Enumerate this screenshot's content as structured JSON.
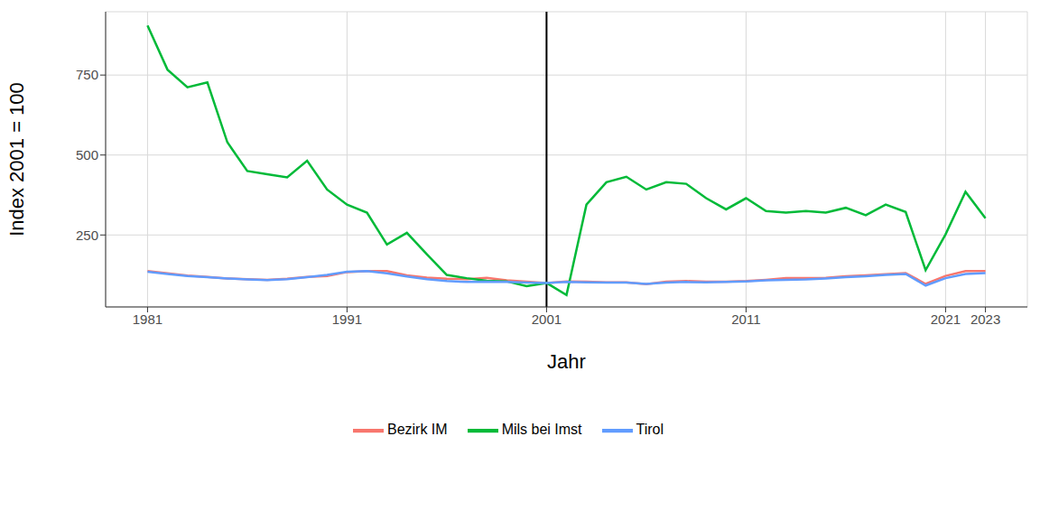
{
  "chart_data": {
    "type": "line",
    "x_label": "Jahr",
    "y_label": "Index 2001 = 100",
    "x": [
      1981,
      1982,
      1983,
      1984,
      1985,
      1986,
      1987,
      1988,
      1989,
      1990,
      1991,
      1992,
      1993,
      1994,
      1995,
      1996,
      1997,
      1998,
      1999,
      2000,
      2001,
      2002,
      2003,
      2004,
      2005,
      2006,
      2007,
      2008,
      2009,
      2010,
      2011,
      2012,
      2013,
      2014,
      2015,
      2016,
      2017,
      2018,
      2019,
      2020,
      2021,
      2022,
      2023
    ],
    "series": [
      {
        "name": "Bezirk IM",
        "color": "#F8766D",
        "values": [
          137,
          130,
          123,
          119,
          114,
          112,
          110,
          113,
          119,
          122,
          134,
          137,
          137,
          124,
          117,
          113,
          112,
          116,
          108,
          104,
          100,
          105,
          104,
          102,
          102,
          96,
          104,
          106,
          104,
          104,
          106,
          110,
          115,
          115,
          116,
          121,
          124,
          127,
          131,
          97,
          122,
          137,
          137
        ]
      },
      {
        "name": "Mils bei Imst",
        "color": "#00BA38",
        "values": [
          905,
          767,
          712,
          727,
          540,
          450,
          440,
          430,
          482,
          392,
          345,
          320,
          220,
          257,
          190,
          125,
          115,
          107,
          105,
          90,
          100,
          62,
          345,
          415,
          432,
          392,
          415,
          410,
          365,
          330,
          365,
          325,
          320,
          325,
          320,
          335,
          312,
          345,
          322,
          140,
          252,
          385,
          302
        ]
      },
      {
        "name": "Tirol",
        "color": "#619CFF",
        "values": [
          135,
          128,
          122,
          118,
          114,
          111,
          109,
          112,
          118,
          125,
          135,
          137,
          130,
          120,
          112,
          106,
          103,
          104,
          103,
          101,
          100,
          103,
          102,
          101,
          101,
          97,
          101,
          103,
          102,
          103,
          105,
          108,
          110,
          111,
          114,
          118,
          121,
          125,
          128,
          92,
          115,
          128,
          131
        ]
      }
    ],
    "xlim": [
      1978.9,
      2025.1
    ],
    "xticks": [
      1981,
      1991,
      2001,
      2011,
      2021,
      2023
    ],
    "ylim": [
      25,
      948
    ],
    "yticks": [
      250,
      500,
      750
    ],
    "reference_lines": [
      {
        "x": 2001,
        "color": "#000000"
      }
    ],
    "grid": true,
    "legend": "bottom"
  }
}
